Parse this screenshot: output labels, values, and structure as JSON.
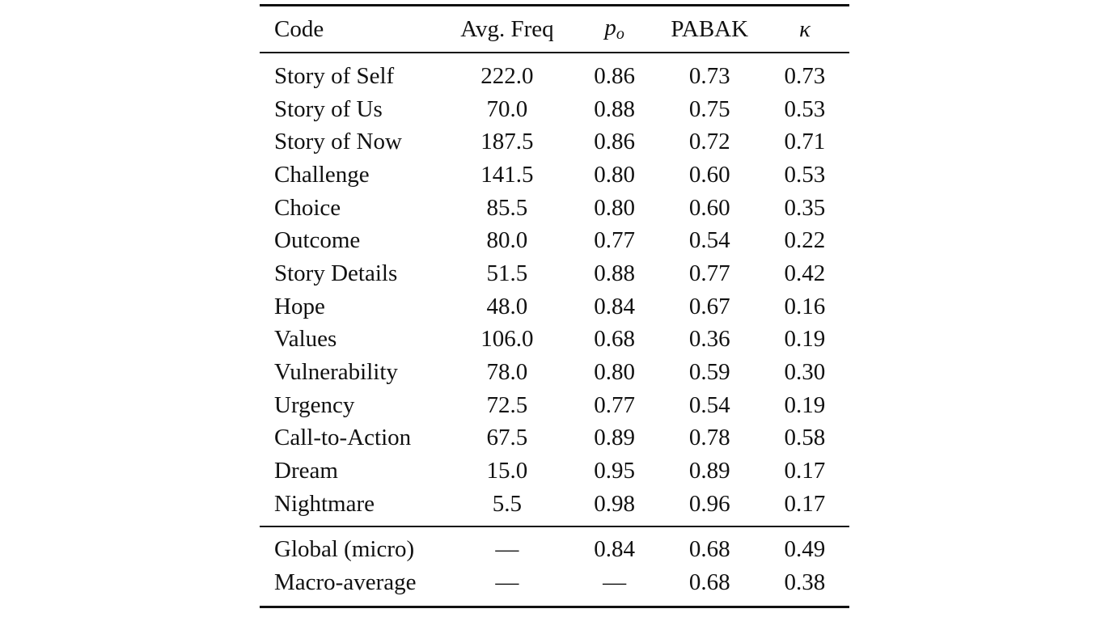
{
  "table": {
    "headers": {
      "code": "Code",
      "avg_freq": "Avg. Freq",
      "po_base": "p",
      "po_sub": "o",
      "pabak": "PABAK",
      "kappa": "κ"
    },
    "rows": [
      {
        "code": "Story of Self",
        "avg_freq": "222.0",
        "po": "0.86",
        "pabak": "0.73",
        "kappa": "0.73"
      },
      {
        "code": "Story of Us",
        "avg_freq": "70.0",
        "po": "0.88",
        "pabak": "0.75",
        "kappa": "0.53"
      },
      {
        "code": "Story of Now",
        "avg_freq": "187.5",
        "po": "0.86",
        "pabak": "0.72",
        "kappa": "0.71"
      },
      {
        "code": "Challenge",
        "avg_freq": "141.5",
        "po": "0.80",
        "pabak": "0.60",
        "kappa": "0.53"
      },
      {
        "code": "Choice",
        "avg_freq": "85.5",
        "po": "0.80",
        "pabak": "0.60",
        "kappa": "0.35"
      },
      {
        "code": "Outcome",
        "avg_freq": "80.0",
        "po": "0.77",
        "pabak": "0.54",
        "kappa": "0.22"
      },
      {
        "code": "Story Details",
        "avg_freq": "51.5",
        "po": "0.88",
        "pabak": "0.77",
        "kappa": "0.42"
      },
      {
        "code": "Hope",
        "avg_freq": "48.0",
        "po": "0.84",
        "pabak": "0.67",
        "kappa": "0.16"
      },
      {
        "code": "Values",
        "avg_freq": "106.0",
        "po": "0.68",
        "pabak": "0.36",
        "kappa": "0.19"
      },
      {
        "code": "Vulnerability",
        "avg_freq": "78.0",
        "po": "0.80",
        "pabak": "0.59",
        "kappa": "0.30"
      },
      {
        "code": "Urgency",
        "avg_freq": "72.5",
        "po": "0.77",
        "pabak": "0.54",
        "kappa": "0.19"
      },
      {
        "code": "Call-to-Action",
        "avg_freq": "67.5",
        "po": "0.89",
        "pabak": "0.78",
        "kappa": "0.58"
      },
      {
        "code": "Dream",
        "avg_freq": "15.0",
        "po": "0.95",
        "pabak": "0.89",
        "kappa": "0.17"
      },
      {
        "code": "Nightmare",
        "avg_freq": "5.5",
        "po": "0.98",
        "pabak": "0.96",
        "kappa": "0.17"
      }
    ],
    "summary": [
      {
        "code": "Global (micro)",
        "avg_freq": "—",
        "po": "0.84",
        "pabak": "0.68",
        "kappa": "0.49"
      },
      {
        "code": "Macro-average",
        "avg_freq": "—",
        "po": "—",
        "pabak": "0.68",
        "kappa": "0.38"
      }
    ]
  }
}
